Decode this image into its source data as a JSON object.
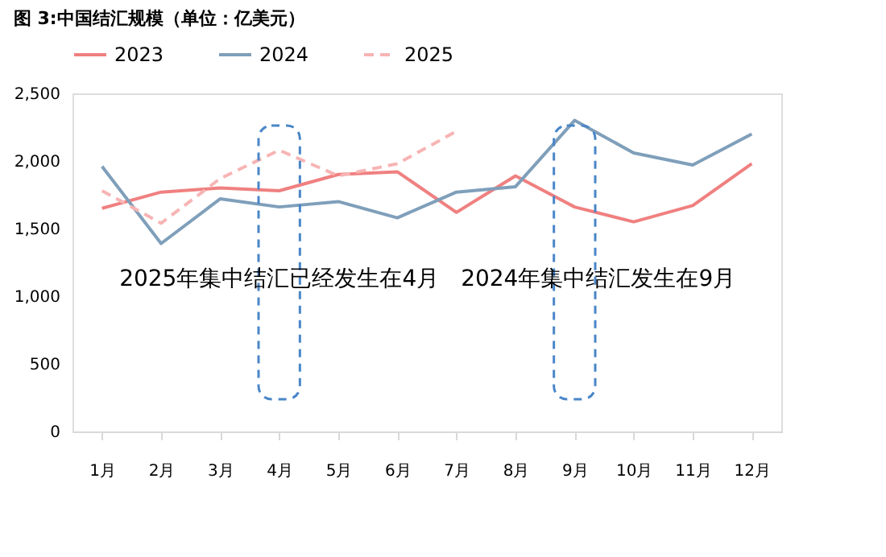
{
  "chart_data": {
    "type": "line",
    "title": "图 3:中国结汇规模（单位：亿美元）",
    "categories": [
      "1月",
      "2月",
      "3月",
      "4月",
      "5月",
      "6月",
      "7月",
      "8月",
      "9月",
      "10月",
      "11月",
      "12月"
    ],
    "series": [
      {
        "name": "2023",
        "color": "#f08080",
        "line_style": "solid",
        "values": [
          1650,
          1770,
          1800,
          1780,
          1900,
          1920,
          1620,
          1890,
          1660,
          1550,
          1670,
          1980
        ]
      },
      {
        "name": "2024",
        "color": "#7f9fba",
        "line_style": "solid",
        "values": [
          1960,
          1390,
          1720,
          1660,
          1700,
          1580,
          1770,
          1810,
          2300,
          2060,
          1970,
          2200
        ]
      },
      {
        "name": "2025",
        "color": "#f7b4b4",
        "line_style": "dashed",
        "values": [
          1780,
          1540,
          1870,
          2080,
          1890,
          1980,
          2220,
          null,
          null,
          null,
          null,
          null
        ]
      }
    ],
    "ylim": [
      0,
      2500
    ],
    "yticks": [
      0,
      {
        "value": 500,
        "label": "500"
      },
      {
        "value": 1000,
        "label": "1,000"
      },
      {
        "value": 1500,
        "label": "1,500"
      },
      {
        "value": 2000,
        "label": "2,000"
      },
      {
        "value": 2500,
        "label": "2,500"
      }
    ],
    "grid": false,
    "legend": "top",
    "annotations": [
      "2025年集中结汇已经发生在4月",
      "2024年集中结汇发生在9月"
    ]
  }
}
